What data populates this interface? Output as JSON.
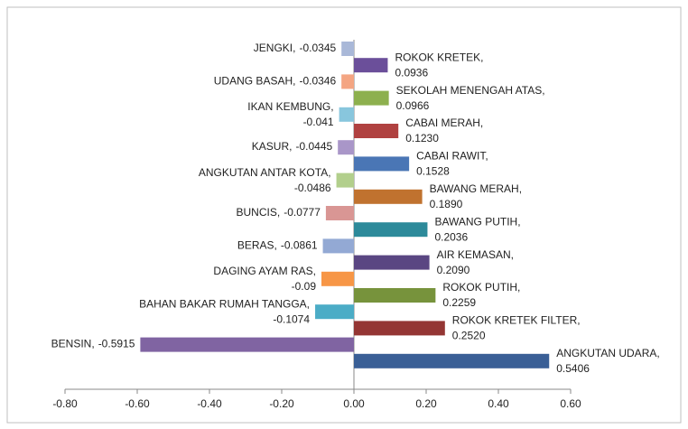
{
  "chart_data": {
    "type": "bar",
    "orientation": "horizontal",
    "categories": [
      "JENGKI,",
      "ROKOK KRETEK,",
      "UDANG BASAH,",
      "SEKOLAH MENENGAH ATAS,",
      "IKAN KEMBUNG,",
      "CABAI MERAH,",
      "KASUR,",
      "CABAI RAWIT,",
      "ANGKUTAN ANTAR KOTA,",
      "BAWANG MERAH,",
      "BUNCIS,",
      "BAWANG PUTIH,",
      "BERAS,",
      "AIR KEMASAN,",
      "DAGING AYAM RAS,",
      "ROKOK PUTIH,",
      "BAHAN BAKAR RUMAH TANGGA,",
      "ROKOK KRETEK FILTER,",
      "BENSIN,",
      "ANGKUTAN UDARA,"
    ],
    "values": [
      -0.0345,
      0.0936,
      -0.0346,
      0.0966,
      -0.041,
      0.123,
      -0.0445,
      0.1528,
      -0.0486,
      0.189,
      -0.0777,
      0.2036,
      -0.0861,
      0.209,
      -0.09,
      0.2259,
      -0.1074,
      0.252,
      -0.5915,
      0.5406
    ],
    "value_labels": [
      "-0.0345",
      "0.0936",
      "-0.0346",
      "0.0966",
      "-0.041",
      "0.1230",
      "-0.0445",
      "0.1528",
      "-0.0486",
      "0.1890",
      "-0.0777",
      "0.2036",
      "-0.0861",
      "0.2090",
      "-0.09",
      "0.2259",
      "-0.1074",
      "0.2520",
      "-0.5915",
      "0.5406"
    ],
    "colors": [
      "#a9b8d8",
      "#6b4f9a",
      "#f4a582",
      "#8db04e",
      "#88c6dd",
      "#b04140",
      "#a996c8",
      "#4a76b5",
      "#b2cf8c",
      "#c0722f",
      "#d99694",
      "#2d8a9a",
      "#93a9d4",
      "#5a4682",
      "#f79646",
      "#77933c",
      "#4bacc6",
      "#943634",
      "#8064a2",
      "#3a5f96"
    ],
    "xlim": [
      -0.8,
      0.6
    ],
    "xticks": [
      {
        "value": -0.8,
        "label": "-0.80"
      },
      {
        "value": -0.6,
        "label": "-0.60"
      },
      {
        "value": -0.4,
        "label": "-0.40"
      },
      {
        "value": -0.2,
        "label": "-0.20"
      },
      {
        "value": 0,
        "label": "0.00"
      },
      {
        "value": 0.2,
        "label": "0.20"
      },
      {
        "value": 0.4,
        "label": "0.40"
      },
      {
        "value": 0.6,
        "label": "0.60"
      }
    ],
    "grid": false
  }
}
